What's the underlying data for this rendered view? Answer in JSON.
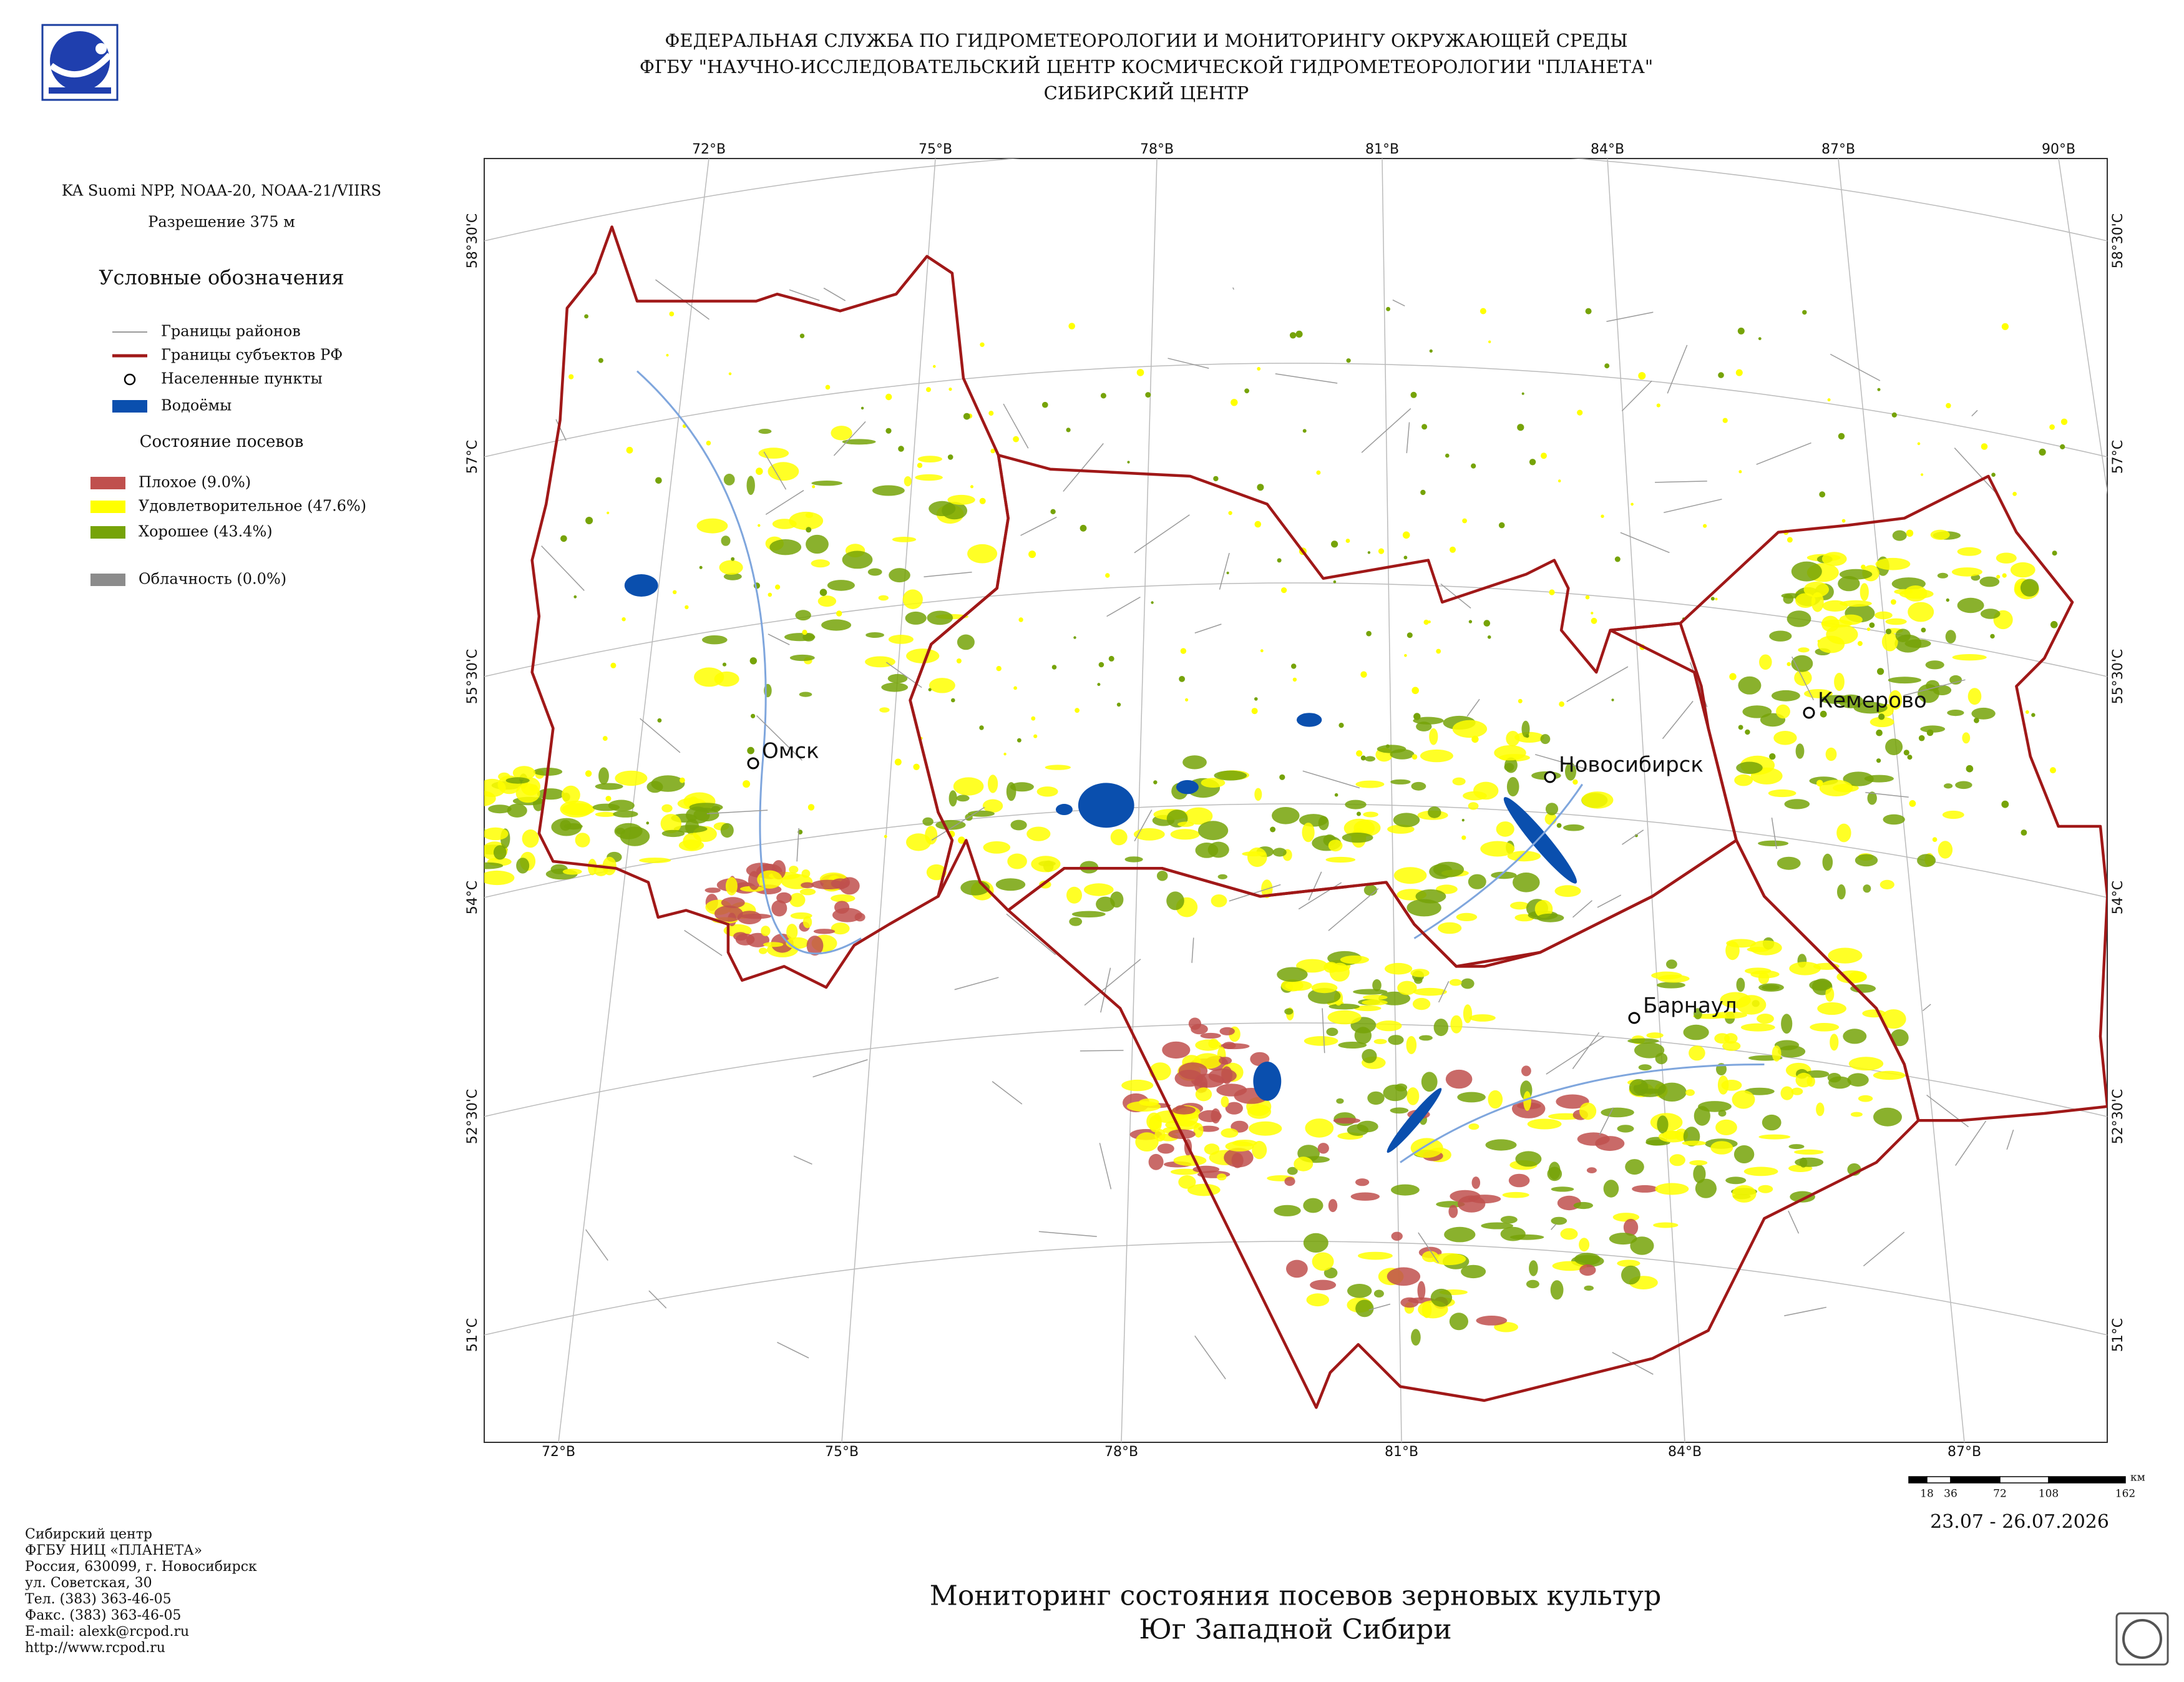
{
  "header": {
    "lines": [
      "ФЕДЕРАЛЬНАЯ СЛУЖБА ПО ГИДРОМЕТЕОРОЛОГИИ И МОНИТОРИНГУ ОКРУЖАЮЩЕЙ СРЕДЫ",
      "ФГБУ \"НАУЧНО-ИССЛЕДОВАТЕЛЬСКИЙ ЦЕНТР КОСМИЧЕСКОЙ ГИДРОМЕТЕОРОЛОГИИ \"ПЛАНЕТА\"",
      "СИБИРСКИЙ ЦЕНТР"
    ]
  },
  "sidebar": {
    "satellite": "KA Suomi NPP, NOAA-20, NOAA-21/VIIRS",
    "resolution": "Разрешение 375 м",
    "legend_title": "Условные обозначения",
    "legend": [
      {
        "label": "Границы районов",
        "color": "#9a9a9a"
      },
      {
        "label": "Границы субъектов РФ",
        "color": "#a01818"
      },
      {
        "label": "Населенные пункты",
        "color": "#000000"
      },
      {
        "label": "Водоёмы",
        "color": "#0a4fae"
      }
    ],
    "crop_title": "Состояние посевов",
    "crop_legend": [
      {
        "label": "Плохое (9.0%)",
        "color": "#c0504d"
      },
      {
        "label": "Удовлетворительное (47.6%)",
        "color": "#ffff00"
      },
      {
        "label": "Хорошее (43.4%)",
        "color": "#76a308"
      }
    ],
    "cloud": {
      "label": "Облачность (0.0%)",
      "color": "#8c8c8c"
    }
  },
  "map": {
    "lon_top": [
      "72°В",
      "75°В",
      "78°В",
      "81°В",
      "84°В",
      "87°В",
      "90°В"
    ],
    "lon_bottom": [
      "72°В",
      "75°В",
      "78°В",
      "81°В",
      "84°В",
      "87°В"
    ],
    "lat_left": [
      "58°30'С",
      "57°С",
      "55°30'С",
      "54°С",
      "52°30'С",
      "51°С"
    ],
    "lat_right": [
      "58°30'С",
      "57°С",
      "55°30'С",
      "54°С",
      "52°30'С",
      "51°С"
    ],
    "cities": [
      {
        "name": "Омск"
      },
      {
        "name": "Новосибирск"
      },
      {
        "name": "Кемерово"
      },
      {
        "name": "Барнаул"
      }
    ]
  },
  "scale": {
    "labels": [
      18,
      36,
      72,
      108,
      162
    ],
    "unit": "км"
  },
  "date": "23.07 - 26.07.2026",
  "title": {
    "lines": [
      "Мониторинг состояния посевов зерновых культур",
      "Юг Западной Сибири"
    ]
  },
  "footer": {
    "lines": [
      "Сибирский центр",
      "ФГБУ НИЦ «ПЛАНЕТА»",
      "Россия, 630099, г. Новосибирск",
      "ул. Советская, 30",
      "Тел. (383) 363-46-05",
      "Факс. (383) 363-46-05",
      "E-mail: alexk@rcpod.ru",
      "http://www.rcpod.ru"
    ]
  }
}
